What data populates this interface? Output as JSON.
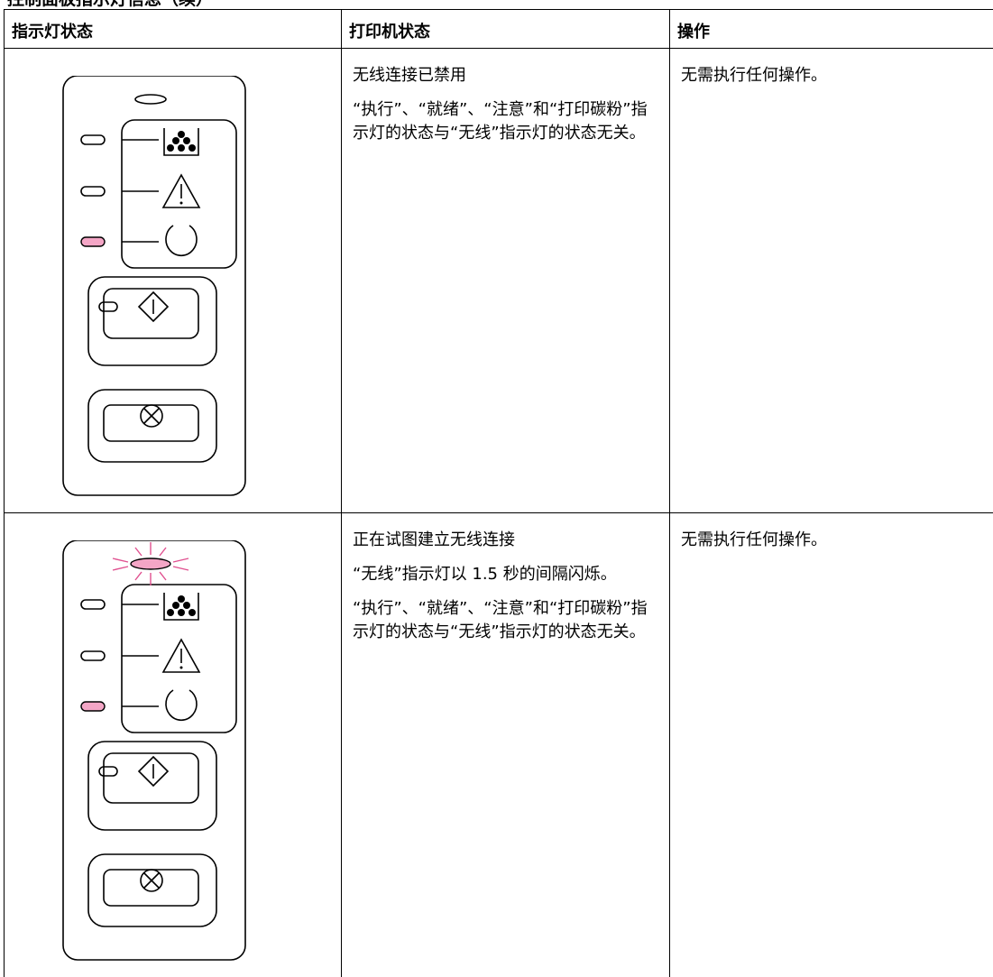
{
  "title": "控制面板指示灯信息（续）",
  "table": {
    "headers": [
      "指示灯状态",
      "打印机状态",
      "操作"
    ],
    "rows": [
      {
        "printer_status": [
          "无线连接已禁用",
          "“执行”、“就绪”、“注意”和“打印碳粉”指示灯的状态与“无线”指示灯的状态无关。"
        ],
        "action": "无需执行任何操作。"
      },
      {
        "printer_status": [
          "正在试图建立无线连接",
          "“无线”指示灯以 1.5 秒的间隔闪烁。",
          "“执行”、“就绪”、“注意”和“打印碳粉”指示灯的状态与“无线”指示灯的状态无关。"
        ],
        "action": "无需执行任何操作。"
      }
    ]
  }
}
